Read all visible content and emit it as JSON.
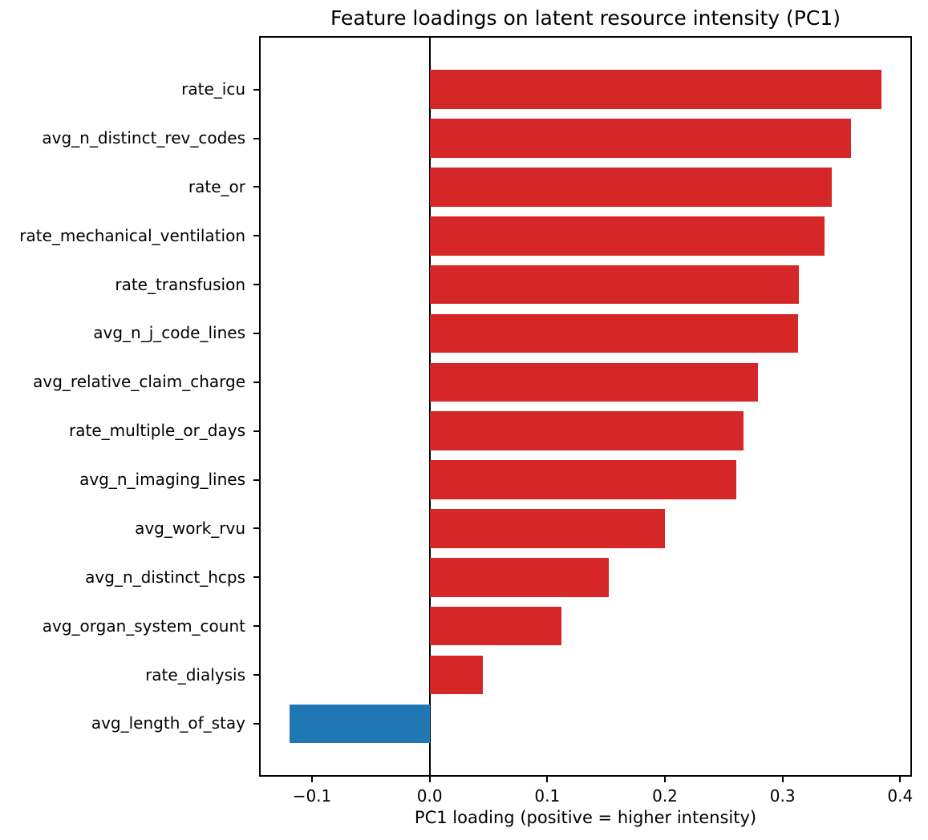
{
  "chart_data": {
    "type": "bar",
    "orientation": "horizontal",
    "title": "Feature loadings on latent resource intensity (PC1)",
    "xlabel": "PC1 loading (positive = higher intensity)",
    "ylabel": "",
    "categories": [
      "rate_icu",
      "avg_n_distinct_rev_codes",
      "rate_or",
      "rate_mechanical_ventilation",
      "rate_transfusion",
      "avg_n_j_code_lines",
      "avg_relative_claim_charge",
      "rate_multiple_or_days",
      "avg_n_imaging_lines",
      "avg_work_rvu",
      "avg_n_distinct_hcps",
      "avg_organ_system_count",
      "rate_dialysis",
      "avg_length_of_stay"
    ],
    "values": [
      0.384,
      0.358,
      0.342,
      0.336,
      0.314,
      0.313,
      0.279,
      0.267,
      0.261,
      0.2,
      0.152,
      0.112,
      0.045,
      -0.119
    ],
    "positive_color": "#d62728",
    "negative_color": "#1f77b4",
    "axis_color": "#000000",
    "background_color": "#ffffff",
    "xlim": [
      -0.145,
      0.41
    ],
    "xticks": [
      -0.1,
      0.0,
      0.1,
      0.2,
      0.3,
      0.4
    ],
    "xtick_labels": [
      "−0.1",
      "0.0",
      "0.1",
      "0.2",
      "0.3",
      "0.4"
    ],
    "grid": false,
    "zero_line": true,
    "legend": null
  }
}
